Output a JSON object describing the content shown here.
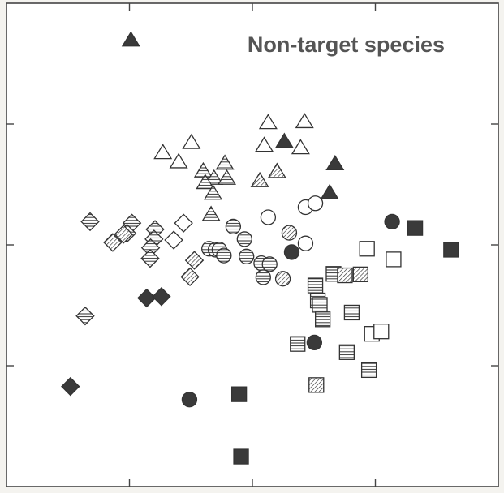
{
  "chart_data": {
    "type": "scatter",
    "title": "Non-target species",
    "xlabel": "",
    "ylabel": "",
    "xlim": [
      0,
      1
    ],
    "ylim": [
      0,
      1
    ],
    "xticks": [
      0.25,
      0.5,
      0.75
    ],
    "yticks": [
      0.25,
      0.5,
      0.75
    ],
    "grid": false,
    "colors": {
      "background": "#f4f3ef",
      "ink": "#333333",
      "fill_dark": "#3a3a3a",
      "open_fill": "#ffffff"
    },
    "series": [
      {
        "marker": "triangle",
        "fill": "open",
        "points": [
          [
            0.532,
            0.752
          ],
          [
            0.606,
            0.754
          ],
          [
            0.318,
            0.69
          ],
          [
            0.376,
            0.711
          ],
          [
            0.35,
            0.671
          ],
          [
            0.524,
            0.705
          ],
          [
            0.598,
            0.7
          ]
        ]
      },
      {
        "marker": "triangle",
        "fill": "horizontal",
        "points": [
          [
            0.444,
            0.668
          ],
          [
            0.4,
            0.652
          ],
          [
            0.422,
            0.637
          ],
          [
            0.448,
            0.637
          ],
          [
            0.404,
            0.628
          ],
          [
            0.42,
            0.606
          ],
          [
            0.416,
            0.562
          ]
        ]
      },
      {
        "marker": "triangle",
        "fill": "diagonal",
        "points": [
          [
            0.55,
            0.651
          ],
          [
            0.515,
            0.632
          ]
        ]
      },
      {
        "marker": "triangle",
        "fill": "solid",
        "points": [
          [
            0.253,
            0.923
          ],
          [
            0.565,
            0.713
          ],
          [
            0.668,
            0.667
          ],
          [
            0.657,
            0.607
          ]
        ]
      },
      {
        "marker": "diamond",
        "fill": "open",
        "points": [
          [
            0.36,
            0.545
          ],
          [
            0.34,
            0.51
          ]
        ]
      },
      {
        "marker": "diamond",
        "fill": "horizontal",
        "points": [
          [
            0.17,
            0.548
          ],
          [
            0.255,
            0.545
          ],
          [
            0.245,
            0.524
          ],
          [
            0.302,
            0.532
          ],
          [
            0.3,
            0.512
          ],
          [
            0.293,
            0.494
          ],
          [
            0.292,
            0.472
          ],
          [
            0.16,
            0.353
          ]
        ]
      },
      {
        "marker": "diamond",
        "fill": "diagonal",
        "points": [
          [
            0.216,
            0.505
          ],
          [
            0.238,
            0.522
          ],
          [
            0.382,
            0.468
          ],
          [
            0.373,
            0.434
          ]
        ]
      },
      {
        "marker": "diamond",
        "fill": "solid",
        "points": [
          [
            0.285,
            0.39
          ],
          [
            0.315,
            0.393
          ],
          [
            0.13,
            0.207
          ]
        ]
      },
      {
        "marker": "circle",
        "fill": "open",
        "points": [
          [
            0.532,
            0.557
          ],
          [
            0.608,
            0.578
          ],
          [
            0.628,
            0.586
          ],
          [
            0.608,
            0.503
          ]
        ]
      },
      {
        "marker": "circle",
        "fill": "horizontal",
        "points": [
          [
            0.461,
            0.538
          ],
          [
            0.484,
            0.512
          ],
          [
            0.412,
            0.492
          ],
          [
            0.425,
            0.49
          ],
          [
            0.433,
            0.49
          ],
          [
            0.442,
            0.478
          ],
          [
            0.488,
            0.476
          ],
          [
            0.518,
            0.462
          ],
          [
            0.535,
            0.46
          ],
          [
            0.522,
            0.433
          ]
        ]
      },
      {
        "marker": "circle",
        "fill": "diagonal",
        "points": [
          [
            0.575,
            0.525
          ],
          [
            0.562,
            0.43
          ]
        ]
      },
      {
        "marker": "circle",
        "fill": "solid",
        "points": [
          [
            0.58,
            0.485
          ],
          [
            0.784,
            0.548
          ],
          [
            0.626,
            0.298
          ],
          [
            0.372,
            0.18
          ]
        ]
      },
      {
        "marker": "square",
        "fill": "open",
        "points": [
          [
            0.733,
            0.492
          ],
          [
            0.787,
            0.47
          ],
          [
            0.743,
            0.316
          ],
          [
            0.762,
            0.321
          ]
        ]
      },
      {
        "marker": "square",
        "fill": "horizontal",
        "points": [
          [
            0.665,
            0.44
          ],
          [
            0.628,
            0.416
          ],
          [
            0.633,
            0.385
          ],
          [
            0.637,
            0.376
          ],
          [
            0.643,
            0.346
          ],
          [
            0.702,
            0.36
          ],
          [
            0.692,
            0.278
          ],
          [
            0.592,
            0.295
          ],
          [
            0.737,
            0.241
          ]
        ]
      },
      {
        "marker": "square",
        "fill": "diagonal",
        "points": [
          [
            0.688,
            0.437
          ],
          [
            0.72,
            0.439
          ],
          [
            0.63,
            0.21
          ]
        ]
      },
      {
        "marker": "square",
        "fill": "solid",
        "points": [
          [
            0.831,
            0.535
          ],
          [
            0.904,
            0.49
          ],
          [
            0.473,
            0.191
          ],
          [
            0.477,
            0.062
          ]
        ]
      }
    ]
  }
}
